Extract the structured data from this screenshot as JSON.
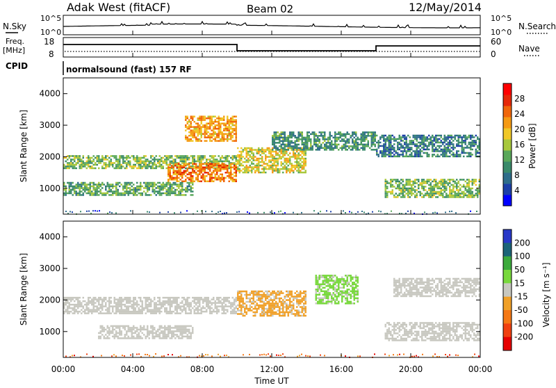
{
  "header": {
    "station": "Adak West (fitACF)",
    "beam": "Beam 02",
    "date": "12/May/2014"
  },
  "noise_panel": {
    "left_label": "N.Sky",
    "right_label": "N.Search",
    "ticks_left": [
      "10^5",
      "10^0"
    ],
    "ticks_right": [
      "10^5",
      "10^0"
    ]
  },
  "freq_panel": {
    "left_label_1": "Freq.",
    "left_label_2": "[MHz]",
    "right_label": "Nave",
    "left_ticks": [
      "18",
      "8"
    ],
    "right_ticks": [
      "60",
      "0"
    ]
  },
  "cpid_panel": {
    "label": "CPID",
    "text": "normalsound (fast) 157 RF"
  },
  "power_panel": {
    "ylabel": "Slant Range [km]",
    "yticks": [
      "4000",
      "3000",
      "2000",
      "1000"
    ],
    "colorbar_label": "Power [dB]",
    "colorbar_ticks": [
      "28",
      "24",
      "20",
      "16",
      "12",
      "8",
      "4"
    ],
    "colors": [
      "#0000ff",
      "#1c3fa8",
      "#2e6d8a",
      "#3a8a6a",
      "#5aa85a",
      "#a8c83c",
      "#f0c828",
      "#f59a14",
      "#f0660a",
      "#e62808",
      "#ff0000"
    ]
  },
  "velocity_panel": {
    "ylabel": "Slant Range [km]",
    "yticks": [
      "4000",
      "3000",
      "2000",
      "1000"
    ],
    "colorbar_label": "Velocity [m s⁻¹]",
    "colorbar_ticks": [
      "200",
      "100",
      "50",
      "15",
      "-15",
      "-50",
      "-100",
      "-200"
    ],
    "colors": [
      "#2838c8",
      "#1c6478",
      "#3caa3c",
      "#78d83c",
      "#c8c8c0",
      "#f0a028",
      "#f57814",
      "#f04010",
      "#e60000"
    ]
  },
  "xaxis": {
    "label": "Time UT",
    "ticks": [
      "00:00",
      "04:00",
      "08:00",
      "12:00",
      "16:00",
      "20:00",
      "00:00"
    ]
  },
  "chart_data": {
    "type": "heatmap",
    "title": "Adak West (fitACF)   Beam 02   12/May/2014",
    "xlabel": "Time UT",
    "ylabel": "Slant Range [km]",
    "xlim": [
      "00:00",
      "24:00"
    ],
    "ylim": [
      180,
      4500
    ],
    "series": [
      {
        "name": "Power [dB]",
        "range": [
          0,
          32
        ],
        "regions": [
          {
            "t_start": 0.0,
            "t_end": 10.0,
            "r_start": 1650,
            "r_end": 2050,
            "value": 14
          },
          {
            "t_start": 6.0,
            "t_end": 10.0,
            "r_start": 1200,
            "r_end": 1800,
            "value": 24
          },
          {
            "t_start": 7.0,
            "t_end": 10.0,
            "r_start": 2500,
            "r_end": 3300,
            "value": 22
          },
          {
            "t_start": 0.0,
            "t_end": 7.5,
            "r_start": 800,
            "r_end": 1200,
            "value": 12
          },
          {
            "t_start": 10.0,
            "t_end": 14.0,
            "r_start": 1500,
            "r_end": 2300,
            "value": 18
          },
          {
            "t_start": 12.0,
            "t_end": 18.0,
            "r_start": 2200,
            "r_end": 2800,
            "value": 10
          },
          {
            "t_start": 18.5,
            "t_end": 24.0,
            "r_start": 700,
            "r_end": 1300,
            "value": 14
          },
          {
            "t_start": 18.0,
            "t_end": 24.0,
            "r_start": 2000,
            "r_end": 2700,
            "value": 8
          }
        ]
      },
      {
        "name": "Velocity [m s⁻¹]",
        "range": [
          -250,
          250
        ],
        "regions": [
          {
            "t_start": 0.0,
            "t_end": 10.0,
            "r_start": 1600,
            "r_end": 2100,
            "value": 0
          },
          {
            "t_start": 2.0,
            "t_end": 7.5,
            "r_start": 800,
            "r_end": 1200,
            "value": 0
          },
          {
            "t_start": 10.0,
            "t_end": 14.0,
            "r_start": 1500,
            "r_end": 2300,
            "value": -40
          },
          {
            "t_start": 14.5,
            "t_end": 17.0,
            "r_start": 1900,
            "r_end": 2800,
            "value": 40
          },
          {
            "t_start": 18.5,
            "t_end": 24.0,
            "r_start": 700,
            "r_end": 1300,
            "value": 0
          },
          {
            "t_start": 19.0,
            "t_end": 24.0,
            "r_start": 2100,
            "r_end": 2700,
            "value": 0
          }
        ]
      }
    ]
  }
}
